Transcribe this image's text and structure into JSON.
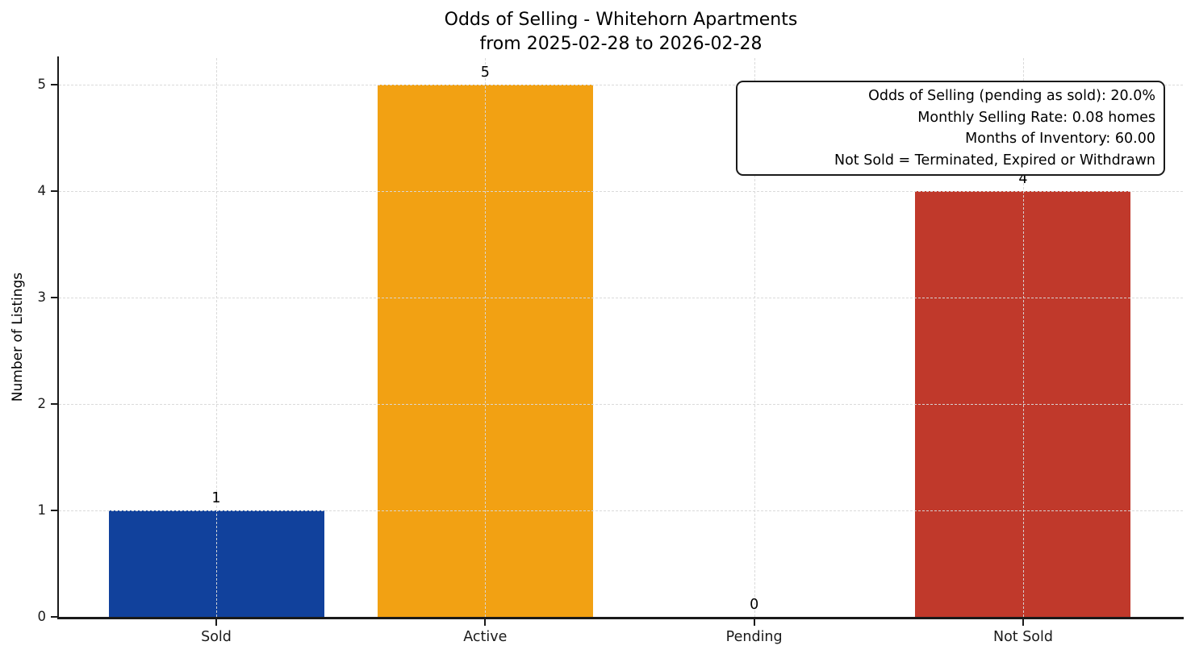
{
  "chart_data": {
    "type": "bar",
    "title": "Odds of Selling - Whitehorn Apartments",
    "subtitle": "from 2025-02-28 to 2026-02-28",
    "xlabel": "",
    "ylabel": "Number of Listings",
    "categories": [
      "Sold",
      "Active",
      "Pending",
      "Not Sold"
    ],
    "values": [
      1,
      5,
      0,
      4
    ],
    "bar_value_labels": [
      "1",
      "5",
      "0",
      "4"
    ],
    "bar_colors": [
      "#11419c",
      "#f2a113",
      "#888888",
      "#c0392b"
    ],
    "yticks": [
      0,
      1,
      2,
      3,
      4,
      5
    ],
    "ylim": [
      0,
      5.25
    ],
    "grid": "both-dashed",
    "legend_position": "none",
    "annotation_lines": [
      "Odds of Selling (pending as sold): 20.0%",
      "Monthly Selling Rate: 0.08 homes",
      "Months of Inventory: 60.00",
      "Not Sold = Terminated, Expired or Withdrawn"
    ]
  },
  "colors": {
    "sold_bar": "#11419c",
    "active_bar": "#f2a113",
    "not_sold_bar": "#c0392b",
    "axis": "#1a1a1a",
    "gridline": "#d9d9d9",
    "background": "#ffffff"
  }
}
